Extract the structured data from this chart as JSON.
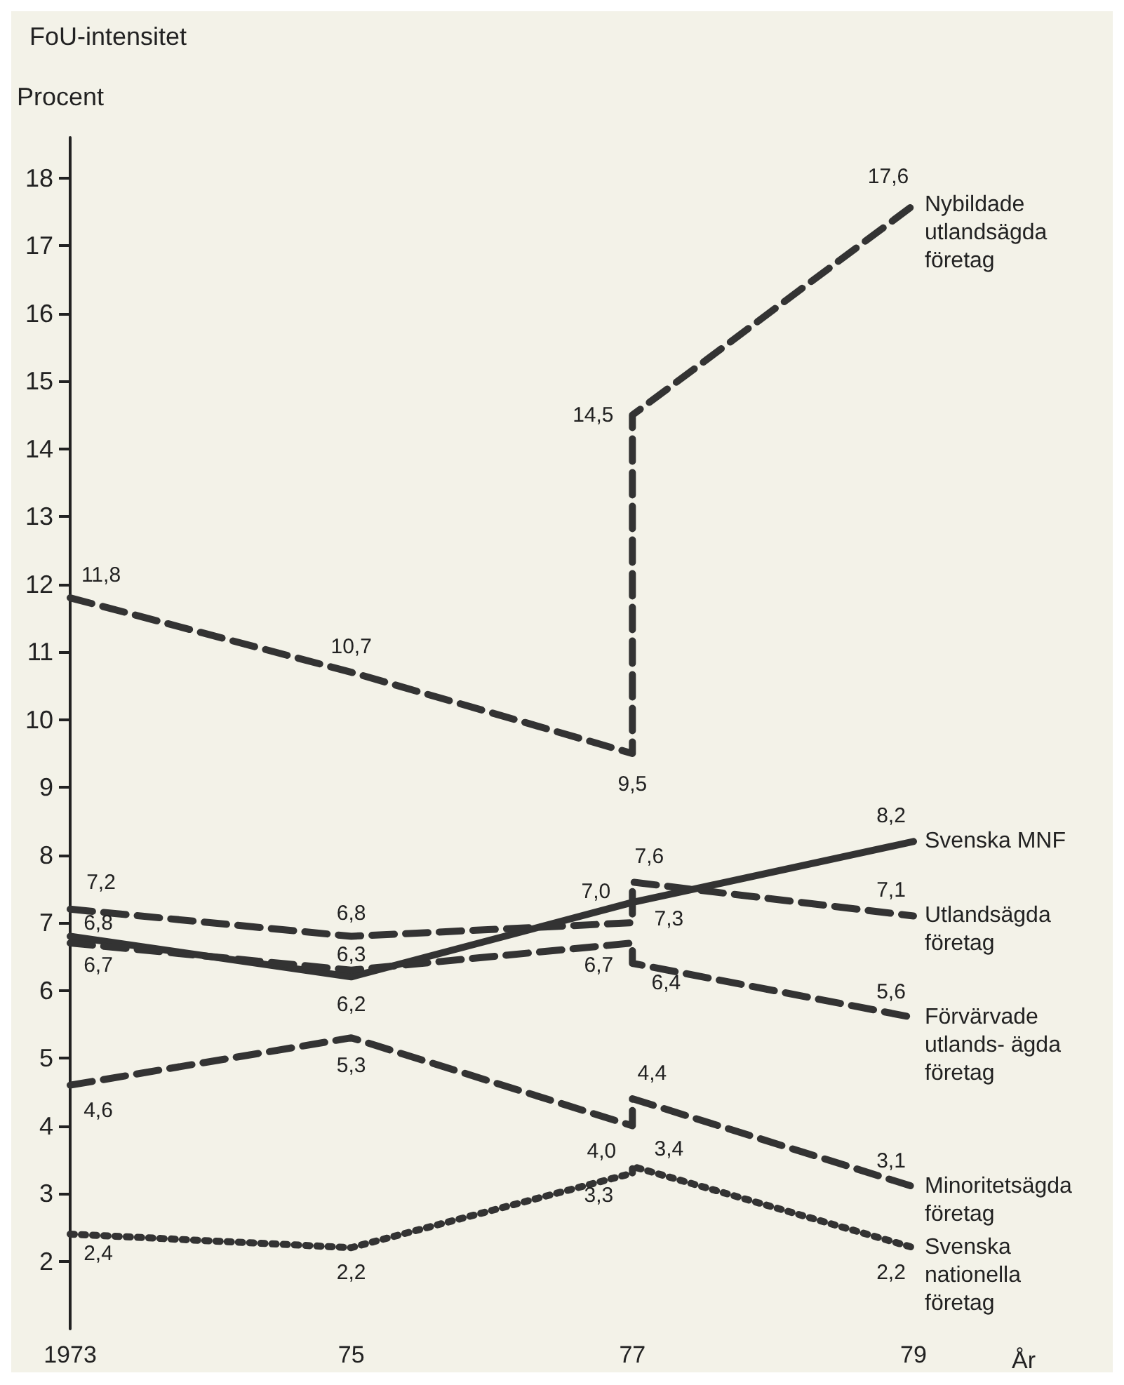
{
  "chart_data": {
    "type": "line",
    "title": "FoU-intensitet",
    "ylabel": "Procent",
    "xlabel": "År",
    "xlim": [
      1973,
      1979
    ],
    "xticks": [
      {
        "value": 1973,
        "label": "1973"
      },
      {
        "value": 1975,
        "label": "75"
      },
      {
        "value": 1977,
        "label": "77"
      },
      {
        "value": 1979,
        "label": "79"
      }
    ],
    "ylim": [
      1,
      18.6
    ],
    "yticks": [
      2,
      3,
      4,
      5,
      6,
      7,
      8,
      9,
      10,
      11,
      12,
      13,
      14,
      15,
      16,
      17,
      18
    ],
    "grid": false,
    "legend": false,
    "marker": "none",
    "series": [
      {
        "name": "Nybildade utlandsägda företag",
        "color": "#333333",
        "line_style": "dashed",
        "x": [
          1973,
          1975,
          1977,
          1977,
          1979
        ],
        "values": [
          11.8,
          10.7,
          9.5,
          14.5,
          17.6
        ],
        "value_labels": [
          "11,8",
          "10,7",
          "9,5",
          "14,5",
          "17,6"
        ]
      },
      {
        "name": "Svenska MNF",
        "color": "#333333",
        "line_style": "solid",
        "x": [
          1973,
          1975,
          1977,
          1979
        ],
        "values": [
          6.8,
          6.2,
          7.3,
          8.2
        ],
        "value_labels": [
          "6,8",
          "6,2",
          "7,3",
          "8,2"
        ]
      },
      {
        "name": "Utlandsägda företag",
        "color": "#333333",
        "line_style": "dashed",
        "x": [
          1973,
          1975,
          1977,
          1977,
          1979
        ],
        "values": [
          7.2,
          6.8,
          7.0,
          7.6,
          7.1
        ],
        "value_labels": [
          "7,2",
          "6,8",
          "7,0",
          "7,6",
          "7,1"
        ]
      },
      {
        "name": "Förvärvade utlands- ägda företag",
        "color": "#333333",
        "line_style": "dashed",
        "x": [
          1973,
          1975,
          1977,
          1977,
          1979
        ],
        "values": [
          6.7,
          6.3,
          6.7,
          6.4,
          5.6
        ],
        "value_labels": [
          "6,7",
          "6,3",
          "6,7",
          "6,4",
          "5,6"
        ]
      },
      {
        "name": "Minoritetsägda företag",
        "color": "#333333",
        "line_style": "dashed",
        "x": [
          1973,
          1975,
          1977,
          1977,
          1979
        ],
        "values": [
          4.6,
          5.3,
          4.0,
          4.4,
          3.1
        ],
        "value_labels": [
          "4,6",
          "5,3",
          "4,0",
          "4,4",
          "3,1"
        ]
      },
      {
        "name": "Svenska nationella företag",
        "color": "#333333",
        "line_style": "dotted",
        "x": [
          1973,
          1975,
          1977,
          1977,
          1979
        ],
        "values": [
          2.4,
          2.2,
          3.3,
          3.4,
          2.2
        ],
        "value_labels": [
          "2,4",
          "2,2",
          "3,3",
          "3,4",
          "2,2"
        ]
      }
    ]
  }
}
